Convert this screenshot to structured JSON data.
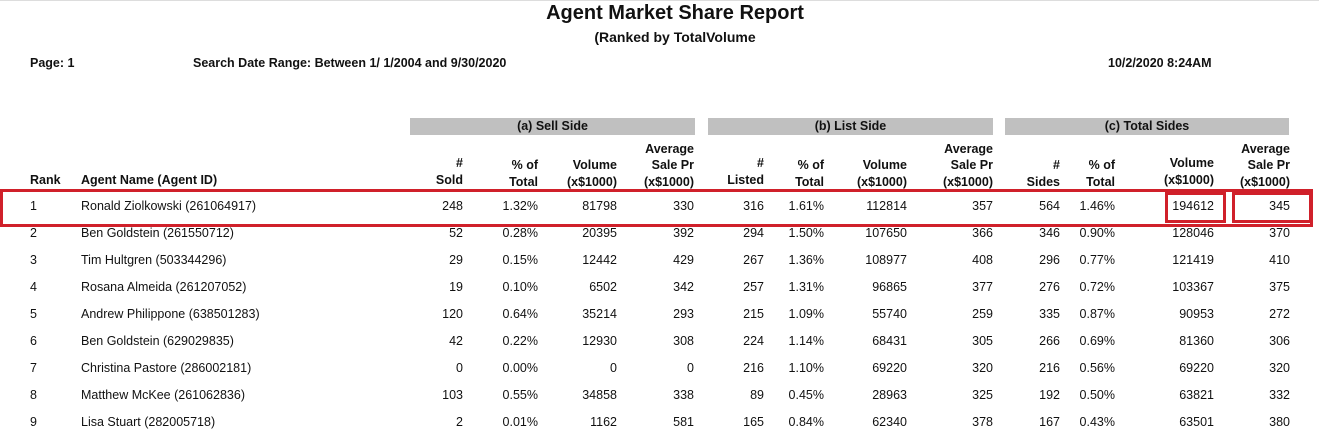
{
  "report": {
    "title": "Agent Market Share Report",
    "subtitle": "(Ranked by TotalVolume",
    "page": "Page: 1",
    "date_range": "Search Date Range: Between 1/ 1/2004 and 9/30/2020",
    "printed": "10/2/2020  8:24AM"
  },
  "groups": {
    "sell": "(a) Sell Side",
    "list": "(b) List Side",
    "total": "(c) Total Sides"
  },
  "headers": {
    "rank": "Rank",
    "agent": "Agent Name (Agent ID)",
    "sold": [
      "#",
      "Sold"
    ],
    "pct": [
      "% of",
      "Total"
    ],
    "volume": [
      "Volume",
      "(x$1000)"
    ],
    "avg": [
      "Average",
      "Sale Pr",
      "(x$1000)"
    ],
    "listed": [
      "#",
      "Listed"
    ],
    "sides": [
      "#",
      "Sides"
    ]
  },
  "highlight_color": "#d0202a",
  "rows": [
    [
      "1",
      "Ronald Ziolkowski (261064917)",
      "248",
      "1.32%",
      "81798",
      "330",
      "316",
      "1.61%",
      "112814",
      "357",
      "564",
      "1.46%",
      "194612",
      "345"
    ],
    [
      "2",
      "Ben Goldstein (261550712)",
      "52",
      "0.28%",
      "20395",
      "392",
      "294",
      "1.50%",
      "107650",
      "366",
      "346",
      "0.90%",
      "128046",
      "370"
    ],
    [
      "3",
      "Tim Hultgren (503344296)",
      "29",
      "0.15%",
      "12442",
      "429",
      "267",
      "1.36%",
      "108977",
      "408",
      "296",
      "0.77%",
      "121419",
      "410"
    ],
    [
      "4",
      "Rosana Almeida (261207052)",
      "19",
      "0.10%",
      "6502",
      "342",
      "257",
      "1.31%",
      "96865",
      "377",
      "276",
      "0.72%",
      "103367",
      "375"
    ],
    [
      "5",
      "Andrew Philippone (638501283)",
      "120",
      "0.64%",
      "35214",
      "293",
      "215",
      "1.09%",
      "55740",
      "259",
      "335",
      "0.87%",
      "90953",
      "272"
    ],
    [
      "6",
      "Ben Goldstein (629029835)",
      "42",
      "0.22%",
      "12930",
      "308",
      "224",
      "1.14%",
      "68431",
      "305",
      "266",
      "0.69%",
      "81360",
      "306"
    ],
    [
      "7",
      "Christina Pastore (286002181)",
      "0",
      "0.00%",
      "0",
      "0",
      "216",
      "1.10%",
      "69220",
      "320",
      "216",
      "0.56%",
      "69220",
      "320"
    ],
    [
      "8",
      "Matthew McKee (261062836)",
      "103",
      "0.55%",
      "34858",
      "338",
      "89",
      "0.45%",
      "28963",
      "325",
      "192",
      "0.50%",
      "63821",
      "332"
    ],
    [
      "9",
      "Lisa Stuart (282005718)",
      "2",
      "0.01%",
      "1162",
      "581",
      "165",
      "0.84%",
      "62340",
      "378",
      "167",
      "0.43%",
      "63501",
      "380"
    ]
  ]
}
